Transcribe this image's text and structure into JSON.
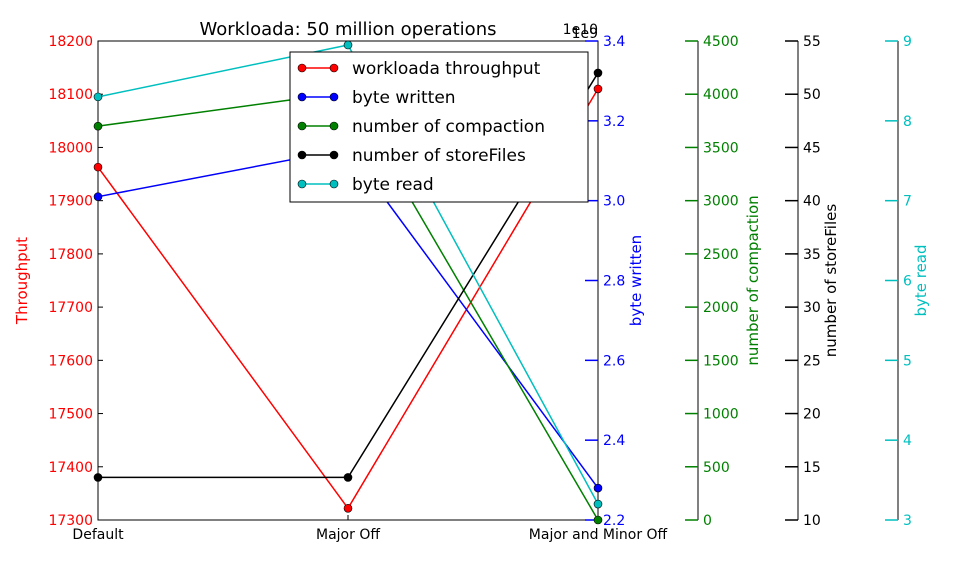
{
  "chart_data": {
    "type": "line",
    "title": "Workloada: 50 million operations",
    "categories": [
      "Default",
      "Major Off",
      "Major and Minor Off"
    ],
    "legend_position": "top-center",
    "grid": false,
    "axes": [
      {
        "id": "y0",
        "label": "Throughput",
        "color": "#ff0000",
        "ylim": [
          17300,
          18200
        ],
        "ticks": [
          17300,
          17400,
          17500,
          17600,
          17700,
          17800,
          17900,
          18000,
          18100,
          18200
        ],
        "tick_labels": [
          "17300",
          "17400",
          "17500",
          "17600",
          "17700",
          "17800",
          "17900",
          "18000",
          "18100",
          "18200"
        ]
      },
      {
        "id": "y1",
        "label": "byte written",
        "color": "#0000ff",
        "ylim": [
          2.2,
          3.4
        ],
        "offset_label": "1e10",
        "ticks": [
          2.2,
          2.4,
          2.6,
          2.8,
          3.0,
          3.2,
          3.4
        ],
        "tick_labels": [
          "2.2",
          "2.4",
          "2.6",
          "2.8",
          "3.0",
          "3.2",
          "3.4"
        ]
      },
      {
        "id": "y2",
        "label": "number of compaction",
        "color": "#008000",
        "ylim": [
          0,
          4500
        ],
        "ticks": [
          0,
          500,
          1000,
          1500,
          2000,
          2500,
          3000,
          3500,
          4000,
          4500
        ],
        "tick_labels": [
          "0",
          "500",
          "1000",
          "1500",
          "2000",
          "2500",
          "3000",
          "3500",
          "4000",
          "4500"
        ]
      },
      {
        "id": "y3",
        "label": "number of storeFiles",
        "color": "#000000",
        "ylim": [
          10,
          55
        ],
        "ticks": [
          10,
          15,
          20,
          25,
          30,
          35,
          40,
          45,
          50,
          55
        ],
        "tick_labels": [
          "10",
          "15",
          "20",
          "25",
          "30",
          "35",
          "40",
          "45",
          "50",
          "55"
        ]
      },
      {
        "id": "y4",
        "label": "byte read",
        "color": "#00bfbf",
        "ylim": [
          3,
          9
        ],
        "offset_label": "1e9",
        "ticks": [
          3,
          4,
          5,
          6,
          7,
          8,
          9
        ],
        "tick_labels": [
          "3",
          "4",
          "5",
          "6",
          "7",
          "8",
          "9"
        ]
      }
    ],
    "series": [
      {
        "name": "workloada throughput",
        "axis": "y0",
        "color": "#ff0000",
        "values": [
          17963,
          17322,
          18110
        ]
      },
      {
        "name": "byte written",
        "axis": "y1",
        "color": "#0000ff",
        "values": [
          3.01,
          3.13,
          2.28
        ]
      },
      {
        "name": "number of compaction",
        "axis": "y2",
        "color": "#008000",
        "values": [
          3700,
          4020,
          0
        ]
      },
      {
        "name": "number of storeFiles",
        "axis": "y3",
        "color": "#000000",
        "values": [
          14,
          14,
          52
        ]
      },
      {
        "name": "byte read",
        "axis": "y4",
        "color": "#00bfbf",
        "values": [
          8.3,
          8.95,
          3.2
        ]
      }
    ]
  }
}
